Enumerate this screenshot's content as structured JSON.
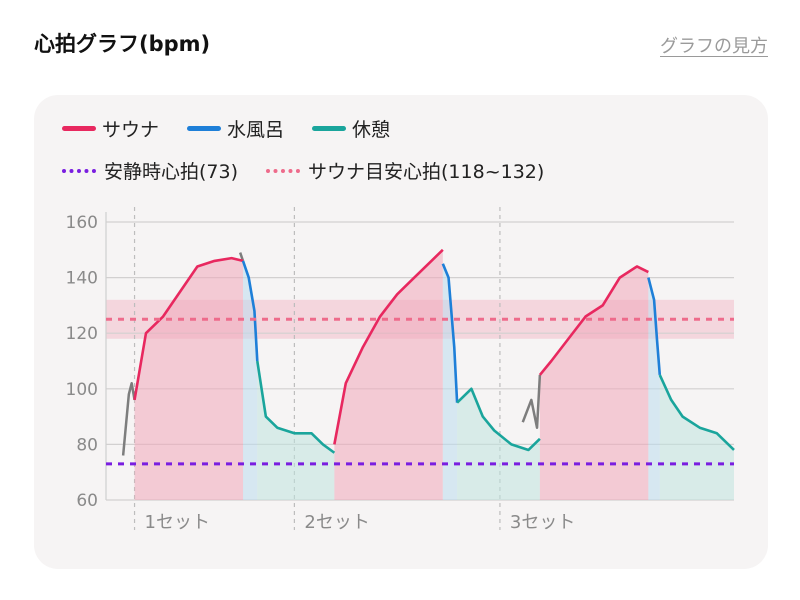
{
  "header": {
    "title": "心拍グラフ(bpm)",
    "help_link": "グラフの見方"
  },
  "legend": {
    "row1": [
      {
        "label": "サウナ",
        "color": "#e8285f"
      },
      {
        "label": "水風呂",
        "color": "#1e7fd8"
      },
      {
        "label": "休憩",
        "color": "#1aa59c"
      }
    ],
    "row2": [
      {
        "label": "安静時心拍(73)",
        "color": "#7a1ee0"
      },
      {
        "label": "サウナ目安心拍(118~132)",
        "color": "#ee6b8b"
      }
    ]
  },
  "chart_data": {
    "type": "line",
    "ylim": [
      60,
      160
    ],
    "yticks": [
      60,
      80,
      100,
      120,
      140,
      160
    ],
    "resting_hr": 73,
    "target_band": [
      118,
      132
    ],
    "target_line": 125,
    "sets": [
      {
        "label": "1セット",
        "start": 0.05
      },
      {
        "label": "2セット",
        "start": 0.33
      },
      {
        "label": "3セット",
        "start": 0.69
      }
    ],
    "series": [
      {
        "name": "サウナ",
        "color": "#e8285f",
        "x": [
          0.05,
          0.07,
          0.1,
          0.13,
          0.16,
          0.19,
          0.22,
          0.24
        ],
        "values": [
          96,
          120,
          126,
          135,
          144,
          146,
          147,
          146
        ]
      },
      {
        "name": "水風呂",
        "color": "#1e7fd8",
        "x": [
          0.24,
          0.25,
          0.26,
          0.265
        ],
        "values": [
          146,
          140,
          128,
          110
        ]
      },
      {
        "name": "休憩",
        "color": "#1aa59c",
        "x": [
          0.265,
          0.28,
          0.3,
          0.33,
          0.36,
          0.38,
          0.4
        ],
        "values": [
          110,
          90,
          86,
          84,
          84,
          80,
          77
        ]
      },
      {
        "name": "サウナ",
        "color": "#e8285f",
        "x": [
          0.4,
          0.42,
          0.45,
          0.48,
          0.51,
          0.54,
          0.57,
          0.59
        ],
        "values": [
          80,
          102,
          115,
          126,
          134,
          140,
          146,
          150
        ]
      },
      {
        "name": "水風呂",
        "color": "#1e7fd8",
        "x": [
          0.59,
          0.6,
          0.61,
          0.615
        ],
        "values": [
          145,
          140,
          115,
          95
        ]
      },
      {
        "name": "休憩",
        "color": "#1aa59c",
        "x": [
          0.615,
          0.64,
          0.66,
          0.68,
          0.71,
          0.74,
          0.76
        ],
        "values": [
          95,
          100,
          90,
          85,
          80,
          78,
          82
        ]
      },
      {
        "name": "サウナ",
        "color": "#e8285f",
        "x": [
          0.76,
          0.78,
          0.81,
          0.84,
          0.87,
          0.9,
          0.93,
          0.95
        ],
        "values": [
          105,
          110,
          118,
          126,
          130,
          140,
          144,
          142
        ]
      },
      {
        "name": "水風呂",
        "color": "#1e7fd8",
        "x": [
          0.95,
          0.96,
          0.965,
          0.97
        ],
        "values": [
          140,
          132,
          118,
          105
        ]
      },
      {
        "name": "休憩",
        "color": "#1aa59c",
        "x": [
          0.97,
          0.99,
          1.01,
          1.04,
          1.07,
          1.1
        ],
        "values": [
          105,
          96,
          90,
          86,
          84,
          78
        ]
      }
    ],
    "gaps": [
      {
        "x": [
          0.03,
          0.04,
          0.045,
          0.05
        ],
        "values": [
          76,
          98,
          102,
          96
        ]
      },
      {
        "name": "",
        "x": [
          0.235,
          0.24
        ],
        "values": [
          149,
          146
        ]
      },
      {
        "x": [
          0.73,
          0.745,
          0.755,
          0.76
        ],
        "values": [
          88,
          96,
          86,
          105
        ]
      }
    ]
  }
}
